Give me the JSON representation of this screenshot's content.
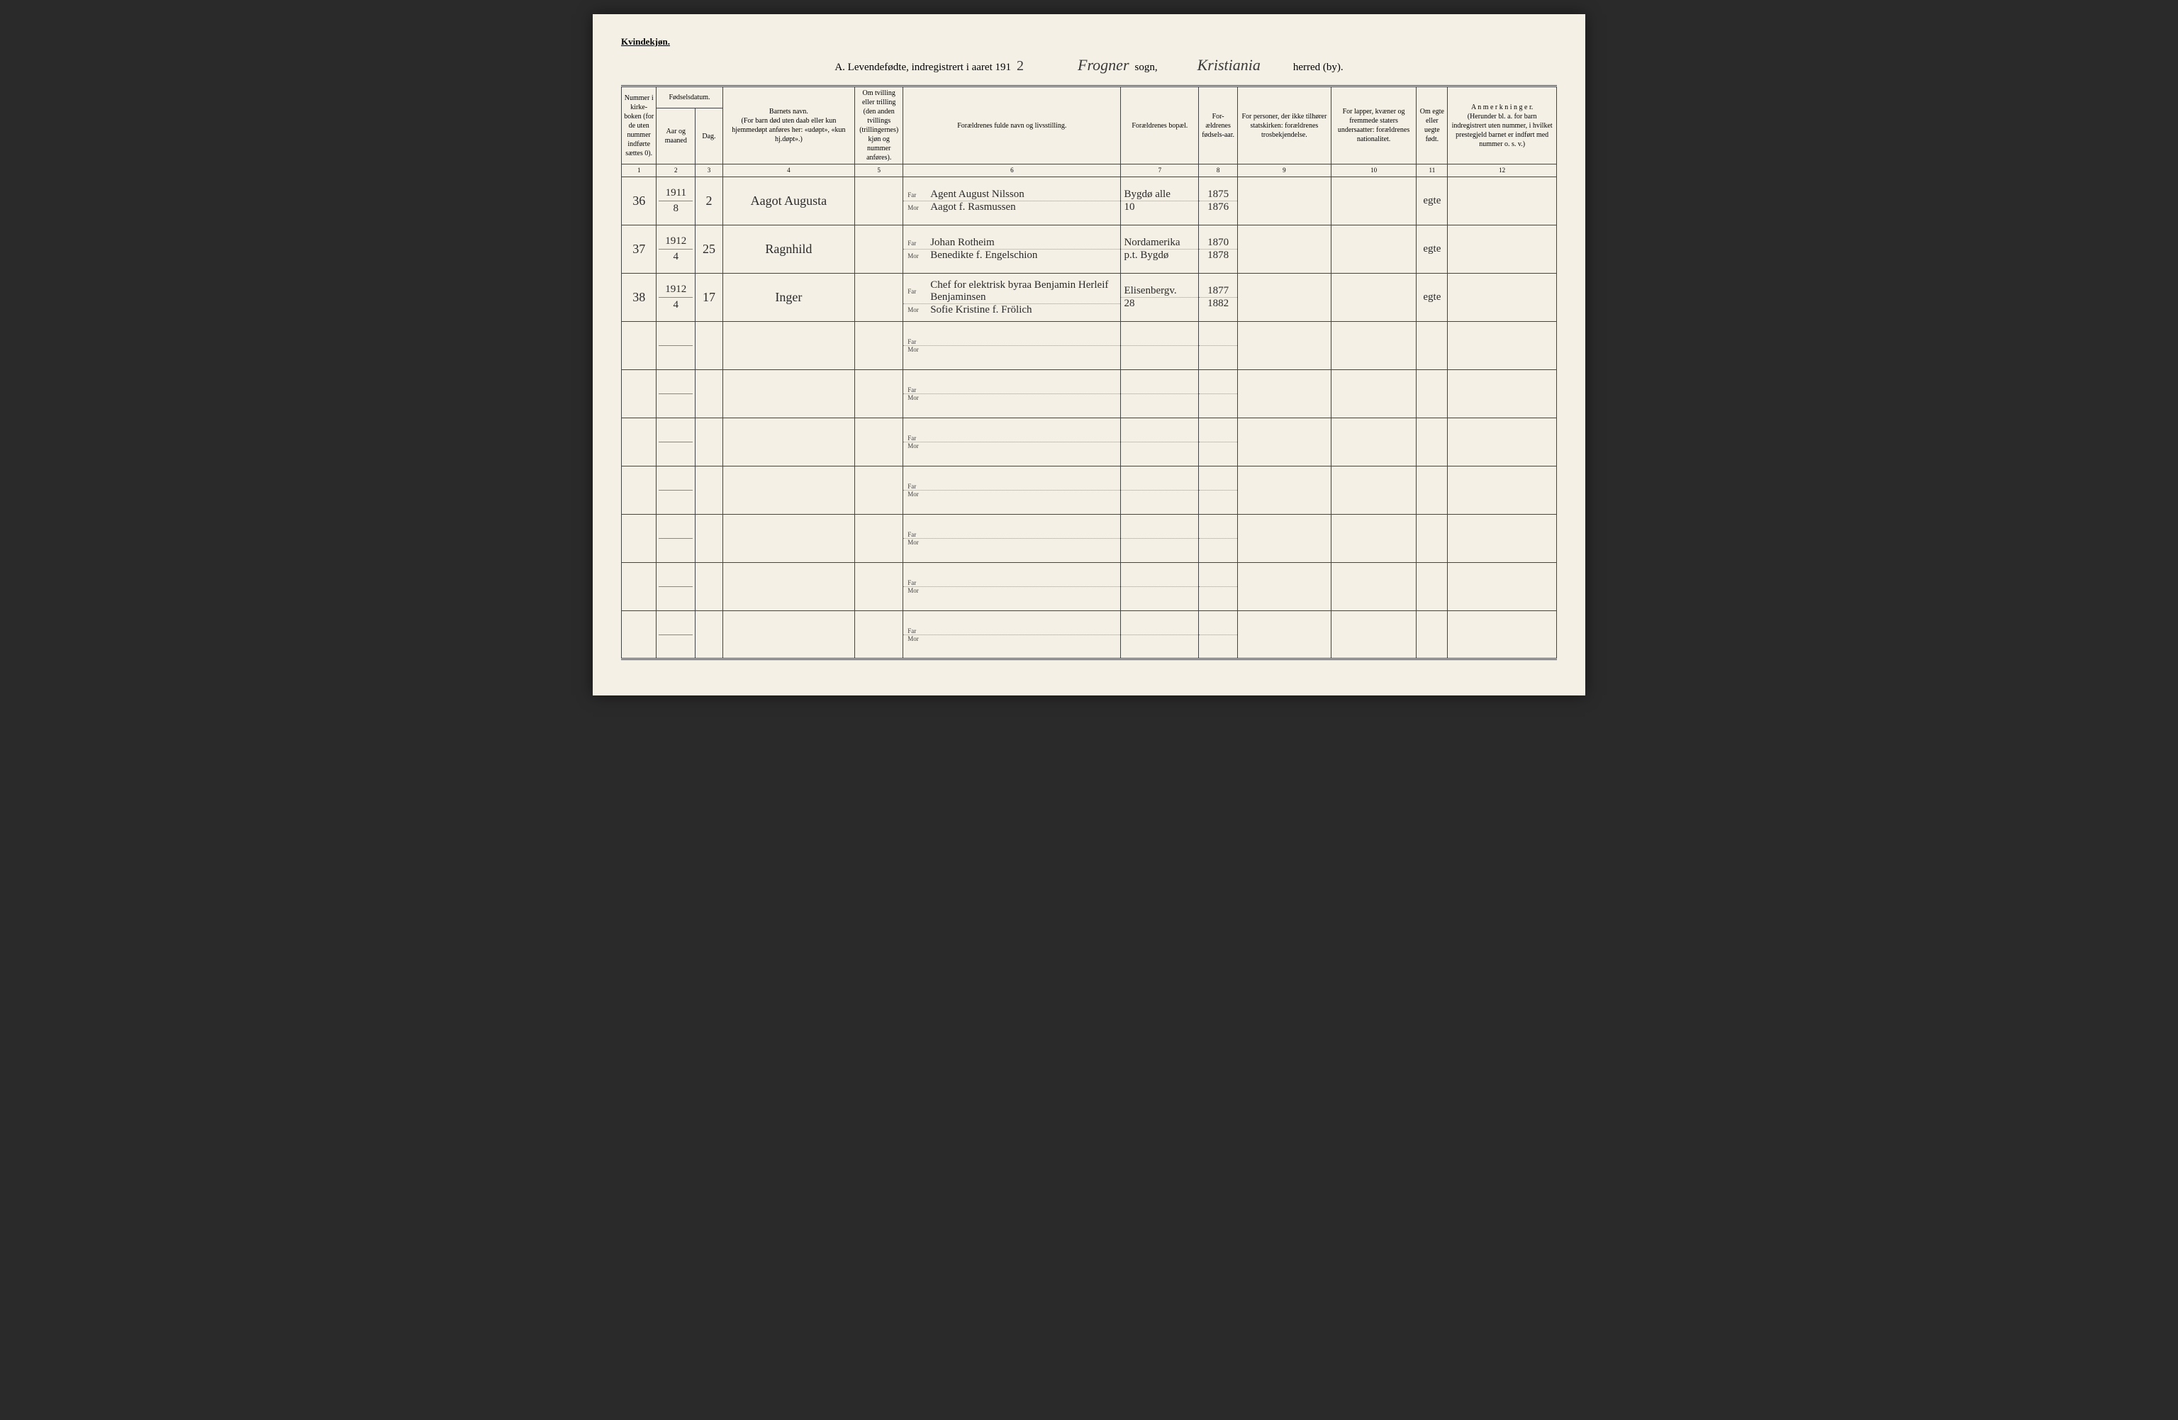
{
  "header": {
    "gender_label": "Kvindekjøn.",
    "title_prefix": "A.  Levendefødte, indregistrert i aaret 191",
    "year_suffix": "2",
    "sogn_value": "Frogner",
    "sogn_label": "sogn,",
    "herred_value": "Kristiania",
    "herred_label": "herred (by)."
  },
  "columns": {
    "c1": "Nummer i kirke-boken (for de uten nummer indførte sættes 0).",
    "c2_group": "Fødselsdatum.",
    "c2": "Aar og maaned",
    "c3": "Dag.",
    "c4": "Barnets navn.\n(For barn død uten daab eller kun hjemmedøpt anføres her: «udøpt», «kun hj.døpt».)",
    "c5": "Om tvilling eller trilling (den anden tvillings (trillingernes) kjøn og nummer anføres).",
    "c6": "Forældrenes fulde navn og livsstilling.",
    "c7": "Forældrenes bopæl.",
    "c8": "For-ældrenes fødsels-aar.",
    "c9": "For personer, der ikke tilhører statskirken: forældrenes trosbekjendelse.",
    "c10": "For lapper, kvæner og fremmede staters undersaatter: forældrenes nationalitet.",
    "c11": "Om egte eller uegte født.",
    "c12": "A n m e r k n i n g e r.\n(Herunder bl. a. for barn indregistrert uten nummer, i hvilket prestegjeld barnet er indført med nummer o. s. v.)",
    "far": "Far",
    "mor": "Mor"
  },
  "col_nums": [
    "1",
    "2",
    "3",
    "4",
    "5",
    "6",
    "7",
    "8",
    "9",
    "10",
    "11",
    "12"
  ],
  "rows": [
    {
      "num": "36",
      "year": "1911",
      "month": "8",
      "day": "2",
      "name": "Aagot Augusta",
      "far": "Agent August Nilsson",
      "mor": "Aagot f. Rasmussen",
      "addr_far": "Bygdø alle",
      "addr_mor": "10",
      "far_year": "1875",
      "mor_year": "1876",
      "egte": "egte"
    },
    {
      "num": "37",
      "year": "1912",
      "month": "4",
      "day": "25",
      "name": "Ragnhild",
      "far": "Johan Rotheim",
      "mor": "Benedikte f. Engelschion",
      "addr_far": "Nordamerika",
      "addr_mor": "p.t. Bygdø",
      "far_year": "1870",
      "mor_year": "1878",
      "egte": "egte"
    },
    {
      "num": "38",
      "year": "1912",
      "month": "4",
      "day": "17",
      "name": "Inger",
      "far": "Chef for elektrisk byraa Benjamin Herleif Benjaminsen",
      "mor": "Sofie Kristine f. Frölich",
      "addr_far": "Elisenbergv.",
      "addr_mor": "28",
      "far_year": "1877",
      "mor_year": "1882",
      "egte": "egte"
    },
    {
      "num": "",
      "year": "",
      "month": "",
      "day": "",
      "name": "",
      "far": "",
      "mor": "",
      "addr_far": "",
      "addr_mor": "",
      "far_year": "",
      "mor_year": "",
      "egte": ""
    },
    {
      "num": "",
      "year": "",
      "month": "",
      "day": "",
      "name": "",
      "far": "",
      "mor": "",
      "addr_far": "",
      "addr_mor": "",
      "far_year": "",
      "mor_year": "",
      "egte": ""
    },
    {
      "num": "",
      "year": "",
      "month": "",
      "day": "",
      "name": "",
      "far": "",
      "mor": "",
      "addr_far": "",
      "addr_mor": "",
      "far_year": "",
      "mor_year": "",
      "egte": ""
    },
    {
      "num": "",
      "year": "",
      "month": "",
      "day": "",
      "name": "",
      "far": "",
      "mor": "",
      "addr_far": "",
      "addr_mor": "",
      "far_year": "",
      "mor_year": "",
      "egte": ""
    },
    {
      "num": "",
      "year": "",
      "month": "",
      "day": "",
      "name": "",
      "far": "",
      "mor": "",
      "addr_far": "",
      "addr_mor": "",
      "far_year": "",
      "mor_year": "",
      "egte": ""
    },
    {
      "num": "",
      "year": "",
      "month": "",
      "day": "",
      "name": "",
      "far": "",
      "mor": "",
      "addr_far": "",
      "addr_mor": "",
      "far_year": "",
      "mor_year": "",
      "egte": ""
    },
    {
      "num": "",
      "year": "",
      "month": "",
      "day": "",
      "name": "",
      "far": "",
      "mor": "",
      "addr_far": "",
      "addr_mor": "",
      "far_year": "",
      "mor_year": "",
      "egte": ""
    }
  ],
  "styling": {
    "page_bg": "#f4f0e6",
    "border_color": "#444444",
    "handwriting_color": "#2a2a2a",
    "print_color": "#333333",
    "header_font_size": 10,
    "body_font_size": 10,
    "handwriting_font_size": 18
  }
}
